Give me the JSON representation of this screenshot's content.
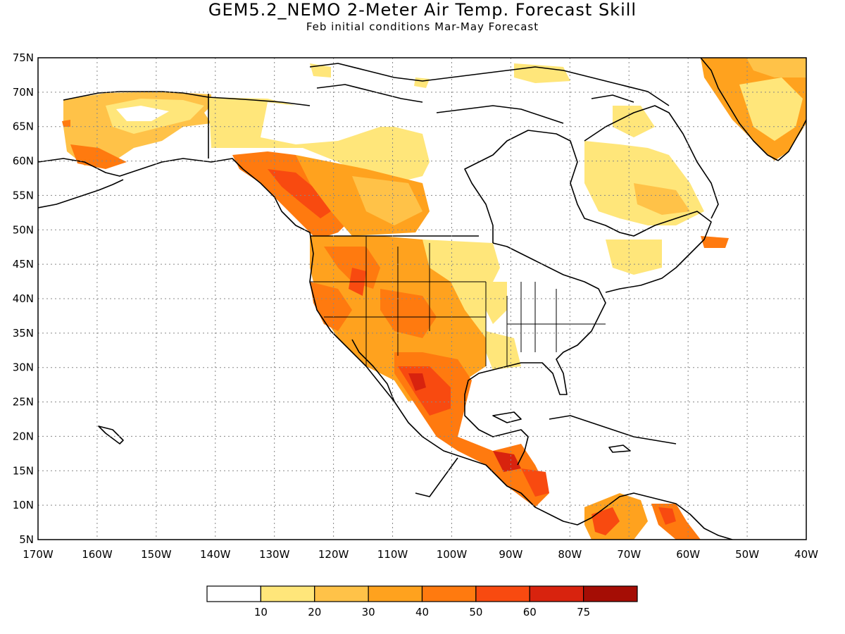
{
  "title": "GEM5.2_NEMO 2-Meter Air Temp. Forecast Skill",
  "subtitle": "Feb initial conditions  Mar-May Forecast",
  "map": {
    "lon_range": [
      -170,
      -40
    ],
    "lat_range": [
      5,
      75
    ],
    "lon_ticks": [
      "170W",
      "160W",
      "150W",
      "140W",
      "130W",
      "120W",
      "110W",
      "100W",
      "90W",
      "80W",
      "70W",
      "60W",
      "50W",
      "40W"
    ],
    "lat_ticks": [
      "75N",
      "70N",
      "65N",
      "60N",
      "55N",
      "50N",
      "45N",
      "40N",
      "35N",
      "30N",
      "25N",
      "20N",
      "15N",
      "10N",
      "5N"
    ],
    "gridlines": "dotted"
  },
  "legend": {
    "labels": [
      "10",
      "20",
      "30",
      "40",
      "50",
      "60",
      "75"
    ],
    "colors": [
      "#ffffff",
      "#ffe67a",
      "#ffc248",
      "#ffa21e",
      "#ff7a0f",
      "#f84a10",
      "#d8230e",
      "#a50d05"
    ]
  }
}
